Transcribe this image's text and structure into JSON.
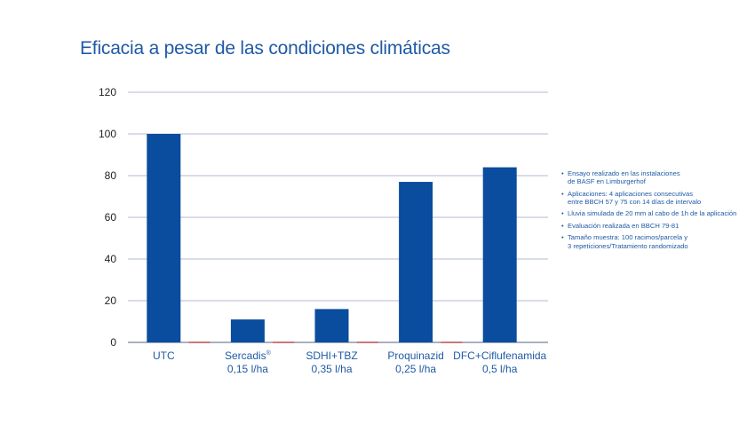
{
  "title": "Eficacia a pesar de las condiciones climáticas",
  "chart_data": {
    "type": "bar",
    "categories": [
      {
        "line1": "UTC",
        "line2": ""
      },
      {
        "line1": "Sercadis",
        "sup": "®",
        "line2": "0,15 l/ha"
      },
      {
        "line1": "SDHI+TBZ",
        "line2": "0,35 l/ha"
      },
      {
        "line1": "Proquinazid",
        "line2": "0,25 l/ha"
      },
      {
        "line1": "DFC+Ciflufenamida",
        "line2": "0,5 l/ha"
      }
    ],
    "values": [
      100,
      11,
      16,
      77,
      84
    ],
    "ylim": [
      0,
      120
    ],
    "yticks": [
      0,
      20,
      40,
      60,
      80,
      100,
      120
    ],
    "grid": true,
    "bar_color": "#0a4c9e",
    "baseline_marker_color": "#c23b3b"
  },
  "notes": [
    [
      "Ensayo realizado en las instalaciones",
      "de BASF en Limburgerhof"
    ],
    [
      "Aplicaciones: 4 aplicaciones consecutivas",
      "entre BBCH 57 y 75 con 14 días de intervalo"
    ],
    [
      "Lluvia simulada de 20 mm al cabo de 1h de la aplicación"
    ],
    [
      "Evaluación realizada en BBCH 79-81"
    ],
    [
      "Tamaño muestra: 100 racimos/parcela y",
      "3 repeticiones/Tratamiento randomizado"
    ]
  ],
  "colors": {
    "accent": "#1f5aa6",
    "grid": "#9aa3c8",
    "text": "#222222"
  }
}
